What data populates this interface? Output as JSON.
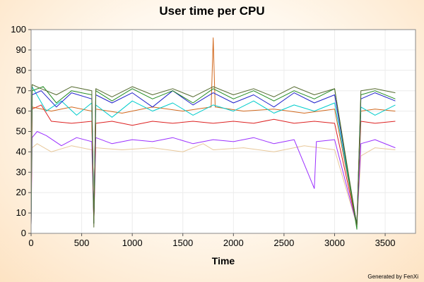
{
  "chart_data": {
    "type": "line",
    "title": "User time per CPU",
    "xlabel": "Time",
    "ylabel": "",
    "xlim": [
      0,
      3800
    ],
    "ylim": [
      0,
      100
    ],
    "xticks": [
      0,
      500,
      1000,
      1500,
      2000,
      2500,
      3000,
      3500
    ],
    "yticks": [
      0,
      10,
      20,
      30,
      40,
      50,
      60,
      70,
      80,
      90,
      100
    ],
    "grid": true,
    "legend": "none",
    "series": [
      {
        "color": "#e8c89a",
        "points": [
          [
            0,
            4
          ],
          [
            10,
            42
          ],
          [
            60,
            44
          ],
          [
            200,
            40
          ],
          [
            400,
            43
          ],
          [
            600,
            41
          ],
          [
            620,
            5
          ],
          [
            640,
            42
          ],
          [
            900,
            41
          ],
          [
            1200,
            42
          ],
          [
            1500,
            40
          ],
          [
            1700,
            44
          ],
          [
            1800,
            41
          ],
          [
            2100,
            42
          ],
          [
            2400,
            40
          ],
          [
            2700,
            43
          ],
          [
            3000,
            41
          ],
          [
            3220,
            4
          ],
          [
            3260,
            38
          ],
          [
            3400,
            42
          ],
          [
            3600,
            41
          ]
        ]
      },
      {
        "color": "#9b30ff",
        "points": [
          [
            0,
            4
          ],
          [
            10,
            47
          ],
          [
            60,
            50
          ],
          [
            150,
            48
          ],
          [
            300,
            43
          ],
          [
            450,
            47
          ],
          [
            600,
            45
          ],
          [
            620,
            5
          ],
          [
            640,
            47
          ],
          [
            800,
            44
          ],
          [
            1000,
            46
          ],
          [
            1200,
            45
          ],
          [
            1400,
            47
          ],
          [
            1600,
            44
          ],
          [
            1800,
            46
          ],
          [
            2000,
            45
          ],
          [
            2200,
            47
          ],
          [
            2400,
            44
          ],
          [
            2600,
            46
          ],
          [
            2800,
            22
          ],
          [
            2820,
            45
          ],
          [
            3000,
            46
          ],
          [
            3220,
            4
          ],
          [
            3260,
            44
          ],
          [
            3400,
            46
          ],
          [
            3600,
            42
          ]
        ]
      },
      {
        "color": "#dd2222",
        "points": [
          [
            0,
            4
          ],
          [
            10,
            61
          ],
          [
            100,
            63
          ],
          [
            200,
            55
          ],
          [
            400,
            54
          ],
          [
            600,
            55
          ],
          [
            620,
            5
          ],
          [
            640,
            54
          ],
          [
            800,
            55
          ],
          [
            1000,
            53
          ],
          [
            1200,
            55
          ],
          [
            1400,
            54
          ],
          [
            1600,
            55
          ],
          [
            1800,
            54
          ],
          [
            2000,
            55
          ],
          [
            2200,
            54
          ],
          [
            2400,
            56
          ],
          [
            2600,
            54
          ],
          [
            2800,
            55
          ],
          [
            3000,
            54
          ],
          [
            3220,
            4
          ],
          [
            3260,
            55
          ],
          [
            3400,
            54
          ],
          [
            3600,
            55
          ]
        ]
      },
      {
        "color": "#d2691e",
        "points": [
          [
            0,
            4
          ],
          [
            10,
            62
          ],
          [
            200,
            60
          ],
          [
            400,
            62
          ],
          [
            600,
            60
          ],
          [
            620,
            5
          ],
          [
            640,
            61
          ],
          [
            900,
            59
          ],
          [
            1200,
            62
          ],
          [
            1500,
            60
          ],
          [
            1780,
            62
          ],
          [
            1800,
            96
          ],
          [
            1820,
            62
          ],
          [
            2100,
            60
          ],
          [
            2400,
            61
          ],
          [
            2700,
            59
          ],
          [
            3000,
            61
          ],
          [
            3220,
            4
          ],
          [
            3260,
            60
          ],
          [
            3400,
            61
          ],
          [
            3600,
            60
          ]
        ]
      },
      {
        "color": "#00cccc",
        "points": [
          [
            0,
            4
          ],
          [
            10,
            72
          ],
          [
            150,
            60
          ],
          [
            300,
            65
          ],
          [
            450,
            58
          ],
          [
            600,
            64
          ],
          [
            620,
            5
          ],
          [
            640,
            63
          ],
          [
            800,
            57
          ],
          [
            1000,
            65
          ],
          [
            1200,
            60
          ],
          [
            1400,
            64
          ],
          [
            1600,
            58
          ],
          [
            1800,
            63
          ],
          [
            2000,
            60
          ],
          [
            2200,
            65
          ],
          [
            2400,
            59
          ],
          [
            2600,
            63
          ],
          [
            2800,
            60
          ],
          [
            3000,
            64
          ],
          [
            3220,
            4
          ],
          [
            3260,
            62
          ],
          [
            3400,
            58
          ],
          [
            3600,
            63
          ]
        ]
      },
      {
        "color": "#2222cc",
        "points": [
          [
            0,
            4
          ],
          [
            10,
            68
          ],
          [
            100,
            70
          ],
          [
            250,
            62
          ],
          [
            400,
            69
          ],
          [
            600,
            66
          ],
          [
            620,
            5
          ],
          [
            640,
            68
          ],
          [
            800,
            64
          ],
          [
            1000,
            69
          ],
          [
            1200,
            62
          ],
          [
            1400,
            70
          ],
          [
            1600,
            63
          ],
          [
            1800,
            69
          ],
          [
            2000,
            64
          ],
          [
            2200,
            68
          ],
          [
            2400,
            62
          ],
          [
            2600,
            69
          ],
          [
            2800,
            64
          ],
          [
            3000,
            68
          ],
          [
            3220,
            4
          ],
          [
            3260,
            66
          ],
          [
            3400,
            69
          ],
          [
            3600,
            65
          ]
        ]
      },
      {
        "color": "#228b22",
        "points": [
          [
            0,
            4
          ],
          [
            10,
            70
          ],
          [
            120,
            72
          ],
          [
            250,
            64
          ],
          [
            400,
            70
          ],
          [
            600,
            68
          ],
          [
            620,
            5
          ],
          [
            640,
            70
          ],
          [
            800,
            65
          ],
          [
            1000,
            71
          ],
          [
            1200,
            66
          ],
          [
            1400,
            70
          ],
          [
            1600,
            64
          ],
          [
            1800,
            71
          ],
          [
            2000,
            66
          ],
          [
            2200,
            70
          ],
          [
            2400,
            65
          ],
          [
            2600,
            70
          ],
          [
            2800,
            66
          ],
          [
            3000,
            71
          ],
          [
            3220,
            2
          ],
          [
            3260,
            68
          ],
          [
            3400,
            70
          ],
          [
            3600,
            66
          ]
        ]
      },
      {
        "color": "#556b2f",
        "points": [
          [
            0,
            4
          ],
          [
            10,
            73
          ],
          [
            100,
            71
          ],
          [
            250,
            68
          ],
          [
            400,
            72
          ],
          [
            600,
            70
          ],
          [
            620,
            3
          ],
          [
            640,
            71
          ],
          [
            800,
            67
          ],
          [
            1000,
            72
          ],
          [
            1200,
            68
          ],
          [
            1400,
            71
          ],
          [
            1600,
            67
          ],
          [
            1800,
            72
          ],
          [
            2000,
            68
          ],
          [
            2200,
            71
          ],
          [
            2400,
            67
          ],
          [
            2600,
            72
          ],
          [
            2800,
            68
          ],
          [
            3000,
            71
          ],
          [
            3220,
            4
          ],
          [
            3260,
            70
          ],
          [
            3400,
            71
          ],
          [
            3600,
            69
          ]
        ]
      }
    ]
  },
  "footer": {
    "credit": "Generated by FenXi"
  }
}
